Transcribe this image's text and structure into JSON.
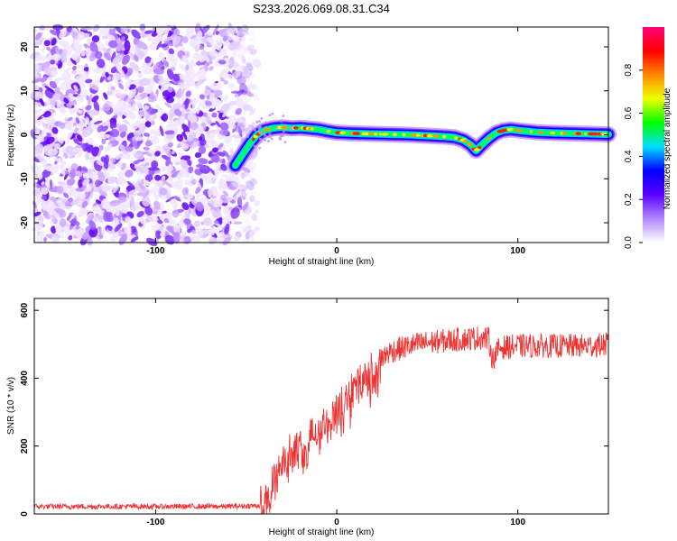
{
  "chart_data": [
    {
      "type": "heatmap",
      "title": "S233.2026.069.08.31.C34",
      "xlabel": "Height of straight line (km)",
      "ylabel": "Frequency (Hz)",
      "xlim": [
        -167,
        150
      ],
      "ylim": [
        -24.5,
        24.5
      ],
      "x_ticks": [
        -100,
        0,
        100
      ],
      "y_ticks": [
        -20,
        -10,
        0,
        10,
        20
      ],
      "colorbar": {
        "label": "Normalized spectral amplitude",
        "range": [
          0.0,
          1.0
        ],
        "ticks": [
          "0.0",
          "0.2",
          "0.4",
          "0.6",
          "0.8"
        ],
        "colors": [
          "#ffffff",
          "#b088ff",
          "#5a00ff",
          "#0000ff",
          "#00ddff",
          "#00ff00",
          "#eeff00",
          "#ff8800",
          "#ff0000",
          "#ff0077"
        ]
      },
      "noise_region_x": [
        -167,
        -50
      ],
      "ridge": {
        "x": [
          -56,
          -52,
          -48,
          -44,
          -40,
          -35,
          -30,
          -25,
          -20,
          -15,
          -10,
          -5,
          0,
          10,
          20,
          30,
          40,
          50,
          60,
          65,
          70,
          74,
          77,
          80,
          84,
          88,
          92,
          96,
          100,
          110,
          120,
          130,
          140,
          150
        ],
        "freq": [
          -7,
          -4.5,
          -2,
          0,
          1,
          1.5,
          1.7,
          1.5,
          1.6,
          1.4,
          1.2,
          0.8,
          0.5,
          0.3,
          0.2,
          0.1,
          0,
          -0.2,
          -0.4,
          -0.6,
          -1.2,
          -2.3,
          -3.6,
          -2.3,
          -0.8,
          0.4,
          1,
          1.2,
          1,
          0.6,
          0.4,
          0.3,
          0.2,
          0.1
        ]
      }
    },
    {
      "type": "line",
      "xlabel": "Height of straight line (km)",
      "ylabel": "SNR (10 * v/v)",
      "xlim": [
        -167,
        150
      ],
      "ylim": [
        0,
        635
      ],
      "x_ticks": [
        -100,
        0,
        100
      ],
      "y_ticks": [
        0,
        200,
        400,
        600
      ],
      "series": [
        {
          "name": "SNR",
          "color": "#ee3333",
          "envelope_x": [
            -167,
            -60,
            -42,
            -38,
            -34,
            -30,
            -25,
            -20,
            -10,
            0,
            10,
            20,
            30,
            40,
            50,
            60,
            70,
            80,
            84,
            86,
            90,
            100,
            110,
            120,
            130,
            140,
            150
          ],
          "envelope_y": [
            22,
            22,
            25,
            60,
            120,
            165,
            185,
            205,
            260,
            320,
            385,
            440,
            480,
            495,
            505,
            510,
            515,
            520,
            515,
            455,
            490,
            495,
            495,
            495,
            495,
            495,
            500
          ]
        }
      ]
    }
  ]
}
